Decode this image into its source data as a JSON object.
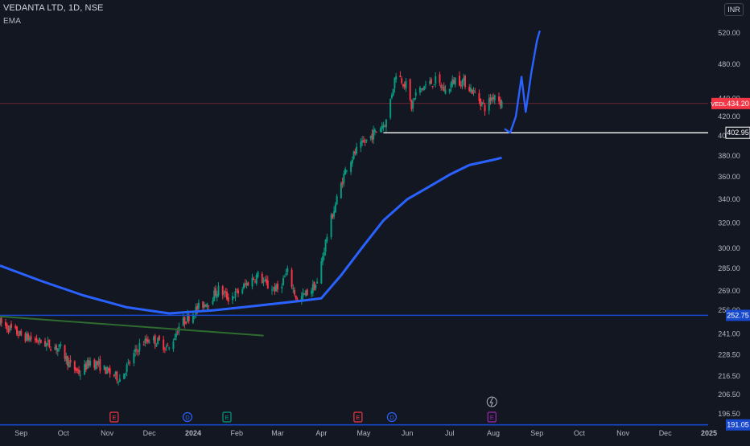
{
  "header": {
    "title": "VEDANTA LTD, 1D, NSE",
    "indicator": "EMA",
    "currency": "INR"
  },
  "chart_data": {
    "type": "candlestick",
    "symbol": "VEDL",
    "y_ticks": [
      "520.00",
      "480.00",
      "440.00",
      "420.00",
      "400.00",
      "380.00",
      "360.00",
      "340.00",
      "320.00",
      "300.00",
      "285.00",
      "269.00",
      "256.00",
      "241.00",
      "228.50",
      "216.50",
      "206.50",
      "196.50"
    ],
    "y_scale": "log",
    "ylim": [
      191.05,
      540
    ],
    "x_ticks": [
      "Sep",
      "Oct",
      "Nov",
      "Dec",
      "2024",
      "Feb",
      "Mar",
      "Apr",
      "May",
      "Jun",
      "Jul",
      "Aug",
      "Sep",
      "Oct",
      "Nov",
      "Dec",
      "2025"
    ],
    "price_labels": [
      {
        "text": "434.20",
        "tag": "VEDL",
        "value": 434.2,
        "color": "#f23645"
      },
      {
        "text": "402.95",
        "value": 402.95,
        "color": "#ffffff"
      },
      {
        "text": "252.75",
        "value": 252.75,
        "color": "#1848cc"
      },
      {
        "text": "191.05",
        "value": 191.05,
        "color": "#1848cc"
      }
    ],
    "price_series": {
      "start": "2023-08-17",
      "end": "2024-08-07",
      "anchors": [
        [
          "2023-08-17",
          248
        ],
        [
          "2023-09-01",
          240
        ],
        [
          "2023-09-15",
          236
        ],
        [
          "2023-09-29",
          232
        ],
        [
          "2023-10-06",
          222
        ],
        [
          "2023-10-13",
          218
        ],
        [
          "2023-10-20",
          225
        ],
        [
          "2023-10-27",
          222
        ],
        [
          "2023-11-03",
          218
        ],
        [
          "2023-11-10",
          215
        ],
        [
          "2023-11-17",
          224
        ],
        [
          "2023-11-24",
          234
        ],
        [
          "2023-12-01",
          238
        ],
        [
          "2023-12-08",
          236
        ],
        [
          "2023-12-15",
          232
        ],
        [
          "2023-12-22",
          246
        ],
        [
          "2024-01-05",
          258
        ],
        [
          "2024-01-12",
          262
        ],
        [
          "2024-01-19",
          270
        ],
        [
          "2024-01-26",
          264
        ],
        [
          "2024-02-02",
          268
        ],
        [
          "2024-02-09",
          275
        ],
        [
          "2024-02-16",
          280
        ],
        [
          "2024-02-23",
          272
        ],
        [
          "2024-03-01",
          270
        ],
        [
          "2024-03-08",
          282
        ],
        [
          "2024-03-15",
          262
        ],
        [
          "2024-03-22",
          268
        ],
        [
          "2024-03-29",
          274
        ],
        [
          "2024-04-05",
          310
        ],
        [
          "2024-04-12",
          340
        ],
        [
          "2024-04-19",
          370
        ],
        [
          "2024-04-26",
          385
        ],
        [
          "2024-05-03",
          395
        ],
        [
          "2024-05-10",
          405
        ],
        [
          "2024-05-17",
          415
        ],
        [
          "2024-05-24",
          470
        ],
        [
          "2024-05-31",
          455
        ],
        [
          "2024-06-04",
          430
        ],
        [
          "2024-06-07",
          445
        ],
        [
          "2024-06-14",
          455
        ],
        [
          "2024-06-21",
          460
        ],
        [
          "2024-06-28",
          448
        ],
        [
          "2024-07-05",
          462
        ],
        [
          "2024-07-12",
          458
        ],
        [
          "2024-07-19",
          445
        ],
        [
          "2024-07-26",
          430
        ],
        [
          "2024-08-02",
          445
        ],
        [
          "2024-08-07",
          434.2
        ]
      ]
    },
    "ema_line": {
      "color": "#2962ff",
      "points": [
        [
          "2023-08-17",
          287
        ],
        [
          "2023-09-15",
          276
        ],
        [
          "2023-10-15",
          266
        ],
        [
          "2023-11-15",
          258
        ],
        [
          "2023-12-15",
          254
        ],
        [
          "2024-01-15",
          256
        ],
        [
          "2024-02-15",
          259
        ],
        [
          "2024-03-15",
          262
        ],
        [
          "2024-04-01",
          264
        ],
        [
          "2024-04-15",
          280
        ],
        [
          "2024-05-01",
          302
        ],
        [
          "2024-05-15",
          322
        ],
        [
          "2024-06-01",
          340
        ],
        [
          "2024-06-15",
          350
        ],
        [
          "2024-07-01",
          362
        ],
        [
          "2024-07-15",
          371
        ],
        [
          "2024-08-01",
          376
        ],
        [
          "2024-08-07",
          378
        ]
      ]
    },
    "drawings": [
      {
        "kind": "trendline",
        "color": "#2e6b2e",
        "points": [
          [
            "2023-08-17",
            252
          ],
          [
            "2024-02-20",
            240
          ]
        ]
      },
      {
        "kind": "projection",
        "color": "#2962ff",
        "points": [
          [
            "2024-08-09",
            407
          ],
          [
            "2024-08-13",
            403
          ],
          [
            "2024-08-17",
            420
          ],
          [
            "2024-08-21",
            465
          ],
          [
            "2024-08-24",
            425
          ],
          [
            "2024-08-28",
            470
          ],
          [
            "2024-09-01",
            510
          ],
          [
            "2024-09-03",
            523
          ]
        ]
      }
    ],
    "event_markers": [
      {
        "label": "E",
        "date": "2023-11-06",
        "color": "#f23645"
      },
      {
        "label": "D",
        "date": "2023-12-28",
        "color": "#2962ff"
      },
      {
        "label": "E",
        "date": "2024-01-25",
        "color": "#089981"
      },
      {
        "label": "E",
        "date": "2024-04-27",
        "color": "#f23645"
      },
      {
        "label": "D",
        "date": "2024-05-21",
        "color": "#2962ff"
      },
      {
        "label": "E",
        "date": "2024-07-31",
        "color": "#9c27b0"
      }
    ],
    "split_marker": {
      "date": "2024-07-31",
      "icon": "lightning-icon"
    },
    "colors": {
      "up": "#089981",
      "down": "#f23645",
      "grid": "#1e222d",
      "axis_text": "#b2b5be",
      "bg": "#131722"
    },
    "grid": false
  }
}
